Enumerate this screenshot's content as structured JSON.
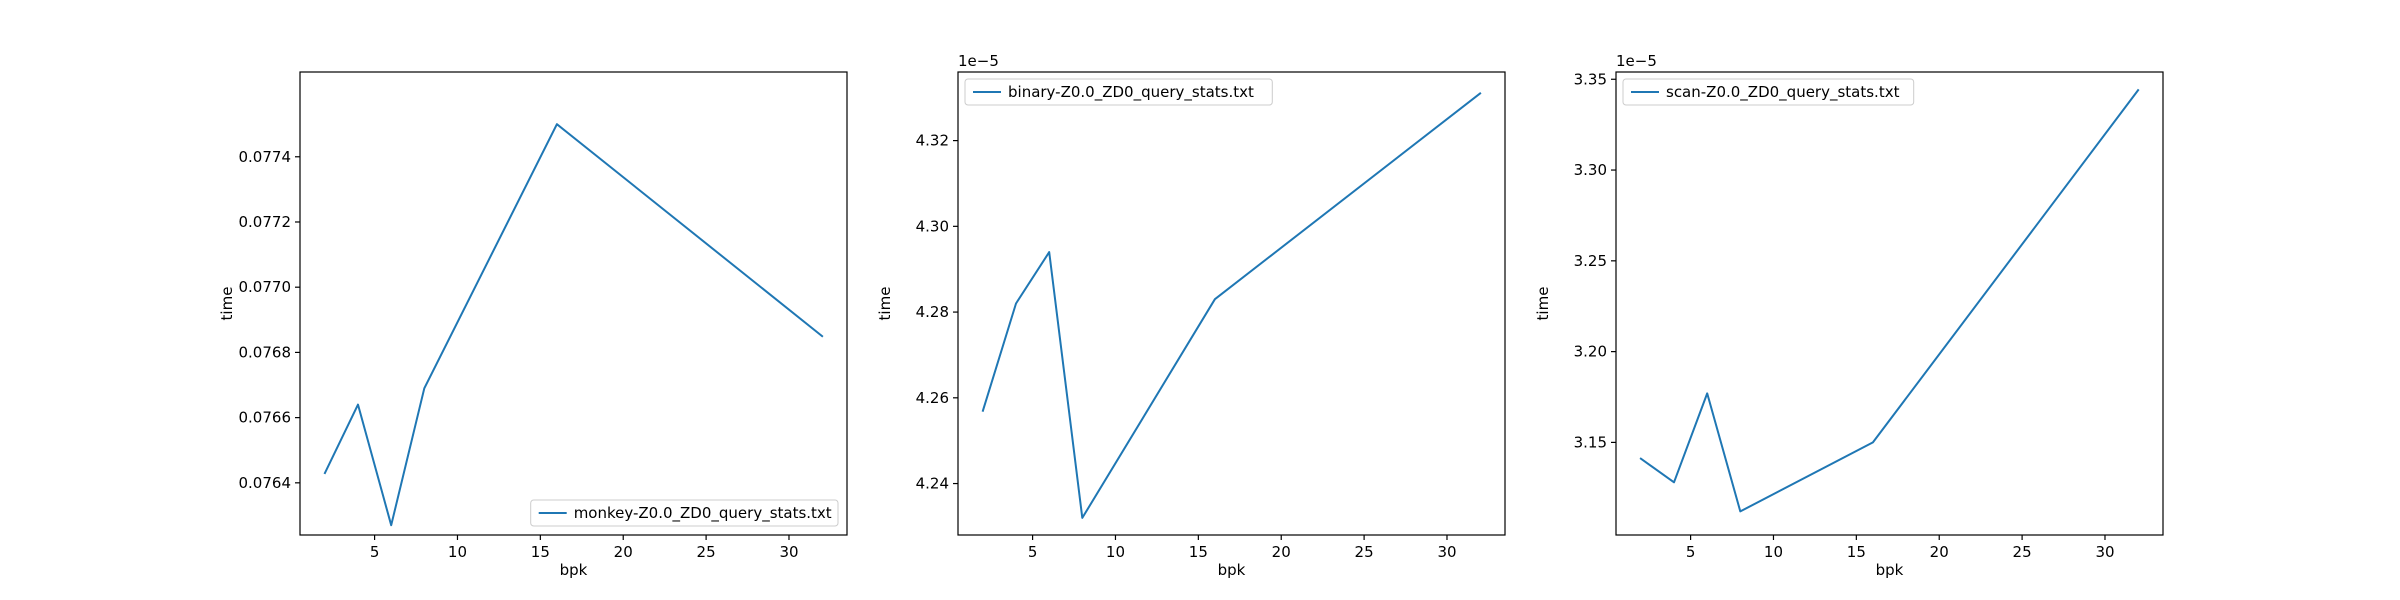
{
  "figure": {
    "line_color": "#1f77b4",
    "background": "#ffffff"
  },
  "chart_data": [
    {
      "type": "line",
      "title": "",
      "xlabel": "bpk",
      "ylabel": "time",
      "xlim": [
        0.5,
        33.5
      ],
      "ylim": [
        0.07624,
        0.07766
      ],
      "x_ticks": [
        5,
        10,
        15,
        20,
        25,
        30
      ],
      "x_tick_labels": [
        "5",
        "10",
        "15",
        "20",
        "25",
        "30"
      ],
      "y_ticks": [
        0.0764,
        0.0766,
        0.0768,
        0.077,
        0.0772,
        0.0774
      ],
      "y_tick_labels": [
        "0.0764",
        "0.0766",
        "0.0768",
        "0.0770",
        "0.0772",
        "0.0774"
      ],
      "offset_label": "",
      "grid": false,
      "legend_position": "lower-right",
      "series": [
        {
          "name": "monkey-Z0.0_ZD0_query_stats.txt",
          "color": "#1f77b4",
          "x": [
            2,
            4,
            6,
            8,
            16,
            32
          ],
          "y": [
            0.07643,
            0.07664,
            0.07627,
            0.07669,
            0.0775,
            0.07685
          ]
        }
      ]
    },
    {
      "type": "line",
      "title": "",
      "xlabel": "bpk",
      "ylabel": "time",
      "xlim": [
        0.5,
        33.5
      ],
      "ylim": [
        4.228,
        4.336
      ],
      "x_ticks": [
        5,
        10,
        15,
        20,
        25,
        30
      ],
      "x_tick_labels": [
        "5",
        "10",
        "15",
        "20",
        "25",
        "30"
      ],
      "y_ticks": [
        4.24,
        4.26,
        4.28,
        4.3,
        4.32
      ],
      "y_tick_labels": [
        "4.24",
        "4.26",
        "4.28",
        "4.30",
        "4.32"
      ],
      "offset_label": "1e−5",
      "grid": false,
      "legend_position": "upper-left",
      "series": [
        {
          "name": "binary-Z0.0_ZD0_query_stats.txt",
          "color": "#1f77b4",
          "x": [
            2,
            4,
            6,
            8,
            16,
            32
          ],
          "y": [
            4.257,
            4.282,
            4.294,
            4.232,
            4.283,
            4.331
          ]
        }
      ]
    },
    {
      "type": "line",
      "title": "",
      "xlabel": "bpk",
      "ylabel": "time",
      "xlim": [
        0.5,
        33.5
      ],
      "ylim": [
        3.099,
        3.354
      ],
      "x_ticks": [
        5,
        10,
        15,
        20,
        25,
        30
      ],
      "x_tick_labels": [
        "5",
        "10",
        "15",
        "20",
        "25",
        "30"
      ],
      "y_ticks": [
        3.15,
        3.2,
        3.25,
        3.3,
        3.35
      ],
      "y_tick_labels": [
        "3.15",
        "3.20",
        "3.25",
        "3.30",
        "3.35"
      ],
      "offset_label": "1e−5",
      "grid": false,
      "legend_position": "upper-left",
      "series": [
        {
          "name": "scan-Z0.0_ZD0_query_stats.txt",
          "color": "#1f77b4",
          "x": [
            2,
            4,
            6,
            8,
            16,
            32
          ],
          "y": [
            3.141,
            3.128,
            3.177,
            3.112,
            3.15,
            3.344
          ]
        }
      ]
    }
  ]
}
